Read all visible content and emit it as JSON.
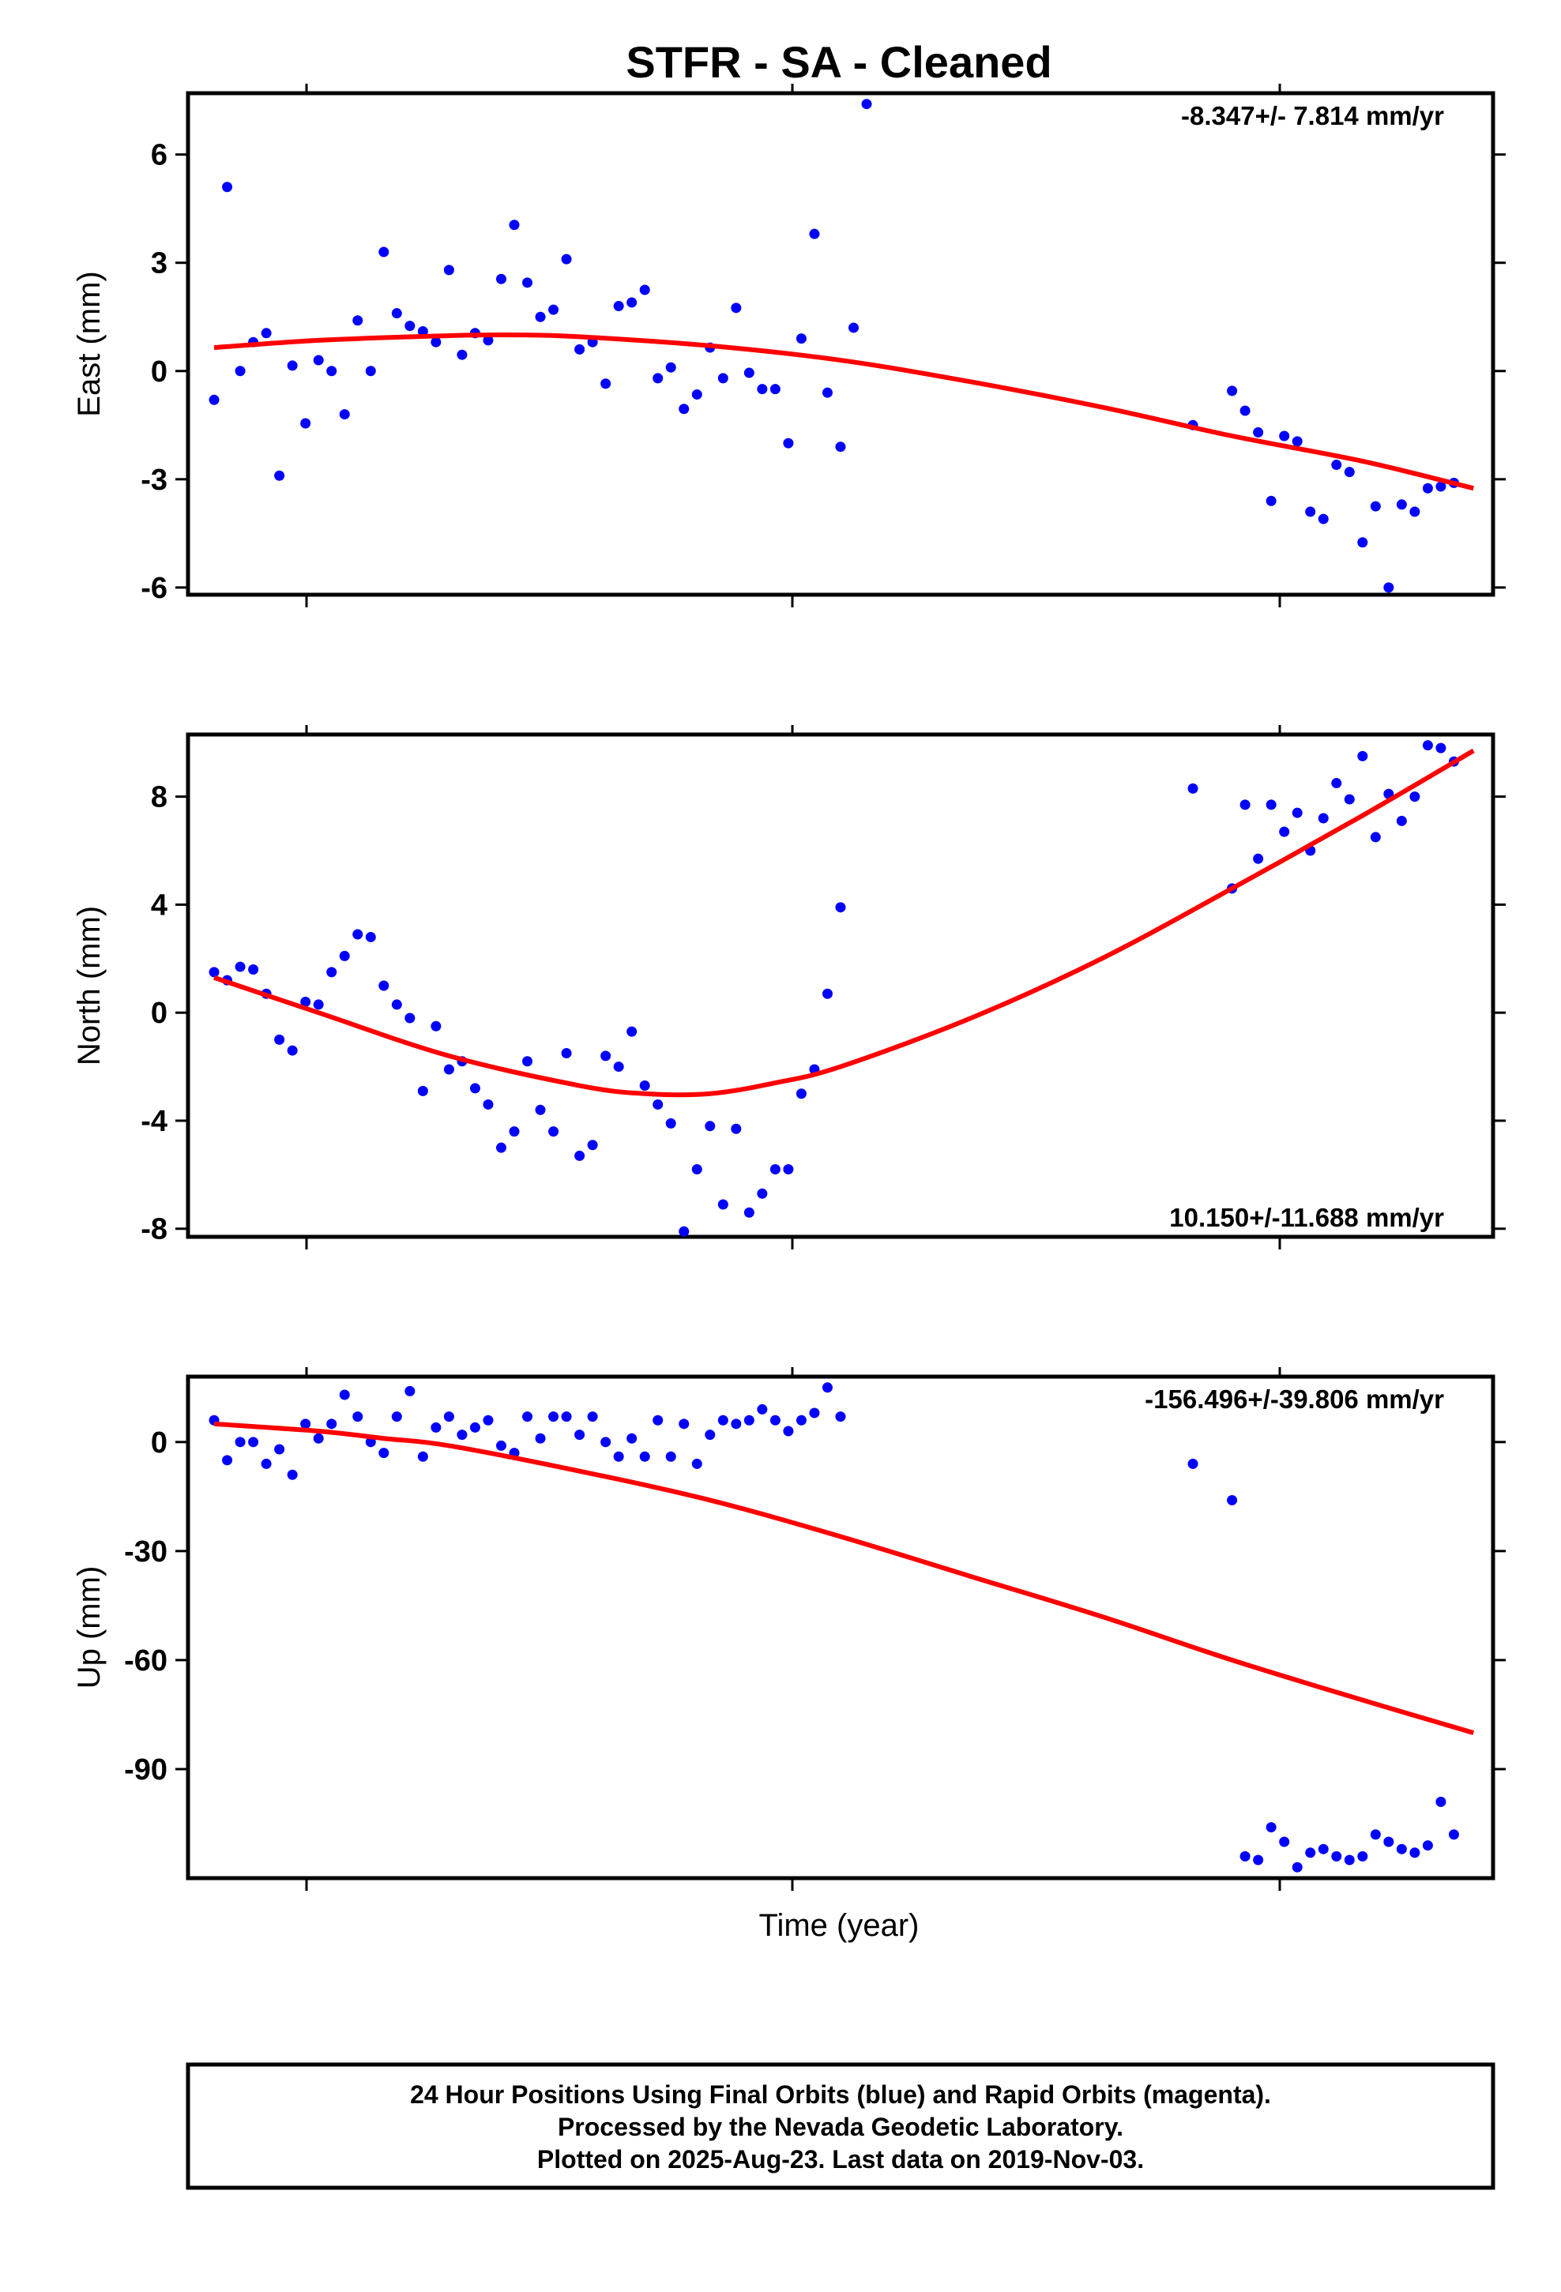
{
  "title": "STFR  - SA - Cleaned",
  "xlabel": "Time (year)",
  "footer": [
    "24 Hour Positions Using Final Orbits (blue) and Rapid Orbits (magenta).",
    "Processed by the Nevada Geodetic Laboratory.",
    "Plotted on 2025-Aug-23. Last data on 2019-Nov-03."
  ],
  "colors": {
    "final_orbits": "#0000ff",
    "model_fit": "#ff0000",
    "axes": "#000000"
  },
  "chart_data": [
    {
      "type": "scatter",
      "ylabel": "East (mm)",
      "rate_label": "-8.347+/- 7.814 mm/yr",
      "ylim": [
        -6.2,
        7.7
      ],
      "yticks": [
        6,
        3,
        0,
        -3,
        -6
      ],
      "ytick_labels": [
        "6",
        "3",
        "0",
        "-3",
        "-6"
      ],
      "grid": false,
      "xlim": [
        0,
        1
      ],
      "x": [
        0.02,
        0.03,
        0.04,
        0.05,
        0.06,
        0.07,
        0.08,
        0.09,
        0.1,
        0.11,
        0.12,
        0.13,
        0.14,
        0.15,
        0.16,
        0.17,
        0.18,
        0.19,
        0.2,
        0.21,
        0.22,
        0.23,
        0.24,
        0.25,
        0.26,
        0.27,
        0.28,
        0.29,
        0.3,
        0.31,
        0.32,
        0.33,
        0.34,
        0.35,
        0.36,
        0.37,
        0.38,
        0.39,
        0.4,
        0.41,
        0.42,
        0.43,
        0.44,
        0.45,
        0.46,
        0.47,
        0.48,
        0.49,
        0.5,
        0.51,
        0.52,
        0.77,
        0.8,
        0.81,
        0.82,
        0.83,
        0.84,
        0.85,
        0.86,
        0.87,
        0.88,
        0.89,
        0.9,
        0.91,
        0.92,
        0.93,
        0.94,
        0.95,
        0.96,
        0.97
      ],
      "y": [
        -0.8,
        5.1,
        0,
        0.8,
        1.05,
        -2.9,
        0.15,
        -1.45,
        0.3,
        0,
        -1.2,
        1.4,
        0,
        3.3,
        1.6,
        1.25,
        1.1,
        0.8,
        2.8,
        0.45,
        1.05,
        0.85,
        2.55,
        4.05,
        2.45,
        1.5,
        1.7,
        3.1,
        0.6,
        0.8,
        -0.35,
        1.8,
        1.9,
        2.25,
        -0.2,
        0.1,
        -1.05,
        -0.65,
        0.65,
        -0.2,
        1.75,
        -0.05,
        -0.5,
        -0.5,
        -2,
        0.9,
        3.8,
        -0.6,
        -2.1,
        1.2,
        7.4,
        -1.5,
        -0.55,
        -1.1,
        -1.7,
        -3.6,
        -1.8,
        -1.95,
        -3.9,
        -4.1,
        -2.6,
        -2.8,
        -4.75,
        -3.75,
        -6,
        -3.7,
        -3.9,
        -3.25,
        -3.2,
        -3.1
      ],
      "fit_x": [
        0.02,
        0.1,
        0.2,
        0.25,
        0.3,
        0.4,
        0.5,
        0.6,
        0.7,
        0.8,
        0.9,
        0.985
      ],
      "fit_y": [
        0.65,
        0.85,
        0.98,
        1.0,
        0.95,
        0.7,
        0.3,
        -0.3,
        -1.0,
        -1.8,
        -2.5,
        -3.25
      ]
    },
    {
      "type": "scatter",
      "ylabel": "North (mm)",
      "rate_label": "10.150+/-11.688 mm/yr",
      "ylim": [
        -8.3,
        10.3
      ],
      "yticks": [
        8,
        4,
        0,
        -4,
        -8
      ],
      "ytick_labels": [
        "8",
        "4",
        "0",
        "-4",
        "-8"
      ],
      "grid": false,
      "xlim": [
        0,
        1
      ],
      "x": [
        0.02,
        0.03,
        0.04,
        0.05,
        0.06,
        0.07,
        0.08,
        0.09,
        0.1,
        0.11,
        0.12,
        0.13,
        0.14,
        0.15,
        0.16,
        0.17,
        0.18,
        0.19,
        0.2,
        0.21,
        0.22,
        0.23,
        0.24,
        0.25,
        0.26,
        0.27,
        0.28,
        0.29,
        0.3,
        0.31,
        0.32,
        0.33,
        0.34,
        0.35,
        0.36,
        0.37,
        0.38,
        0.39,
        0.4,
        0.41,
        0.42,
        0.43,
        0.44,
        0.45,
        0.46,
        0.47,
        0.48,
        0.49,
        0.5,
        0.77,
        0.8,
        0.81,
        0.82,
        0.83,
        0.84,
        0.85,
        0.86,
        0.87,
        0.88,
        0.89,
        0.9,
        0.91,
        0.92,
        0.93,
        0.94,
        0.95,
        0.96,
        0.97
      ],
      "y": [
        1.5,
        1.2,
        1.7,
        1.6,
        0.7,
        -1.0,
        -1.4,
        0.4,
        0.3,
        1.5,
        2.1,
        2.9,
        2.8,
        1.0,
        0.3,
        -0.2,
        -2.9,
        -0.5,
        -2.1,
        -1.8,
        -2.8,
        -3.4,
        -5.0,
        -4.4,
        -1.8,
        -3.6,
        -4.4,
        -1.5,
        -5.3,
        -4.9,
        -1.6,
        -2.0,
        -0.7,
        -2.7,
        -3.4,
        -4.1,
        -8.1,
        -5.8,
        -4.2,
        -7.1,
        -4.3,
        -7.4,
        -6.7,
        -5.8,
        -5.8,
        -3.0,
        -2.1,
        0.7,
        3.9,
        8.3,
        4.6,
        7.7,
        5.7,
        7.7,
        6.7,
        7.4,
        6.0,
        7.2,
        8.5,
        7.9,
        9.5,
        6.5,
        8.1,
        7.1,
        8.0,
        9.9,
        9.8,
        9.3
      ],
      "fit_x": [
        0.02,
        0.1,
        0.2,
        0.3,
        0.35,
        0.4,
        0.45,
        0.5,
        0.6,
        0.7,
        0.8,
        0.9,
        0.985
      ],
      "fit_y": [
        1.3,
        0.0,
        -1.6,
        -2.7,
        -3.0,
        -3.0,
        -2.6,
        -2.0,
        -0.2,
        2.0,
        4.6,
        7.3,
        9.7
      ]
    },
    {
      "type": "scatter",
      "ylabel": "Up (mm)",
      "rate_label": "-156.496+/-39.806 mm/yr",
      "ylim": [
        -120,
        18
      ],
      "yticks": [
        0,
        -30,
        -60,
        -90
      ],
      "ytick_labels": [
        "0",
        "-30",
        "-60",
        "-90"
      ],
      "grid": false,
      "xlim": [
        0,
        1
      ],
      "x": [
        0.02,
        0.03,
        0.04,
        0.05,
        0.06,
        0.07,
        0.08,
        0.09,
        0.1,
        0.11,
        0.12,
        0.13,
        0.14,
        0.15,
        0.16,
        0.17,
        0.18,
        0.19,
        0.2,
        0.21,
        0.22,
        0.23,
        0.24,
        0.25,
        0.26,
        0.27,
        0.28,
        0.29,
        0.3,
        0.31,
        0.32,
        0.33,
        0.34,
        0.35,
        0.36,
        0.37,
        0.38,
        0.39,
        0.4,
        0.41,
        0.42,
        0.43,
        0.44,
        0.45,
        0.46,
        0.47,
        0.48,
        0.49,
        0.5,
        0.77,
        0.8,
        0.81,
        0.82,
        0.83,
        0.84,
        0.85,
        0.86,
        0.87,
        0.88,
        0.89,
        0.9,
        0.91,
        0.92,
        0.93,
        0.94,
        0.95,
        0.96,
        0.97
      ],
      "y": [
        6,
        -5,
        0,
        0,
        -6,
        -2,
        -9,
        5,
        1,
        5,
        13,
        7,
        0,
        -3,
        7,
        14,
        -4,
        4,
        7,
        2,
        4,
        6,
        -1,
        -3,
        7,
        1,
        7,
        7,
        2,
        7,
        0,
        -4,
        1,
        -4,
        6,
        -4,
        5,
        -6,
        2,
        6,
        5,
        6,
        9,
        6,
        3,
        6,
        8,
        15,
        7,
        -6,
        -16,
        -114,
        -115,
        -106,
        -110,
        -117,
        -113,
        -112,
        -114,
        -115,
        -114,
        -108,
        -110,
        -112,
        -113,
        -111,
        -99,
        -108
      ],
      "fit_x": [
        0.02,
        0.1,
        0.15,
        0.2,
        0.3,
        0.4,
        0.5,
        0.6,
        0.7,
        0.8,
        0.9,
        0.985
      ],
      "fit_y": [
        5,
        3,
        1,
        -1,
        -8,
        -16,
        -26,
        -37,
        -48,
        -60,
        -71,
        -80
      ]
    }
  ]
}
